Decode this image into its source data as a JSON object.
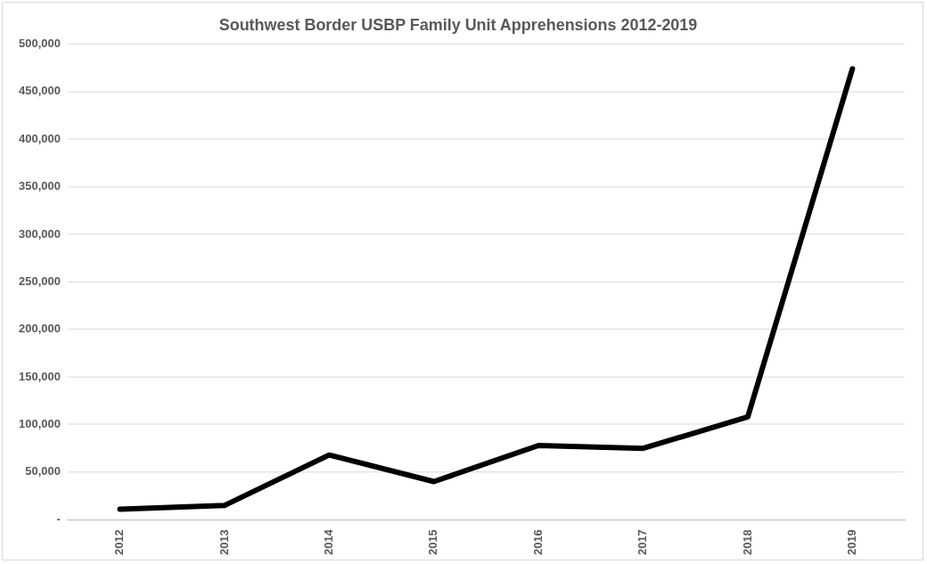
{
  "chart_data": {
    "type": "line",
    "title": "Southwest Border USBP Family Unit Apprehensions 2012-2019",
    "categories": [
      "2012",
      "2013",
      "2014",
      "2015",
      "2016",
      "2017",
      "2018",
      "2019"
    ],
    "series": [
      {
        "color": "#000000",
        "values": [
          11000,
          15000,
          68000,
          40000,
          78000,
          75000,
          108000,
          474000
        ]
      }
    ],
    "ylim": [
      0,
      500000
    ],
    "yticks": [
      {
        "value": 0,
        "label": "-"
      },
      {
        "value": 50000,
        "label": "50,000"
      },
      {
        "value": 100000,
        "label": "100,000"
      },
      {
        "value": 150000,
        "label": "150,000"
      },
      {
        "value": 200000,
        "label": "200,000"
      },
      {
        "value": 250000,
        "label": "250,000"
      },
      {
        "value": 300000,
        "label": "300,000"
      },
      {
        "value": 350000,
        "label": "350,000"
      },
      {
        "value": 400000,
        "label": "400,000"
      },
      {
        "value": 450000,
        "label": "450,000"
      },
      {
        "value": 500000,
        "label": "500,000"
      }
    ],
    "grid": "y",
    "legend": false,
    "marker": "none",
    "line_style": "solid"
  }
}
